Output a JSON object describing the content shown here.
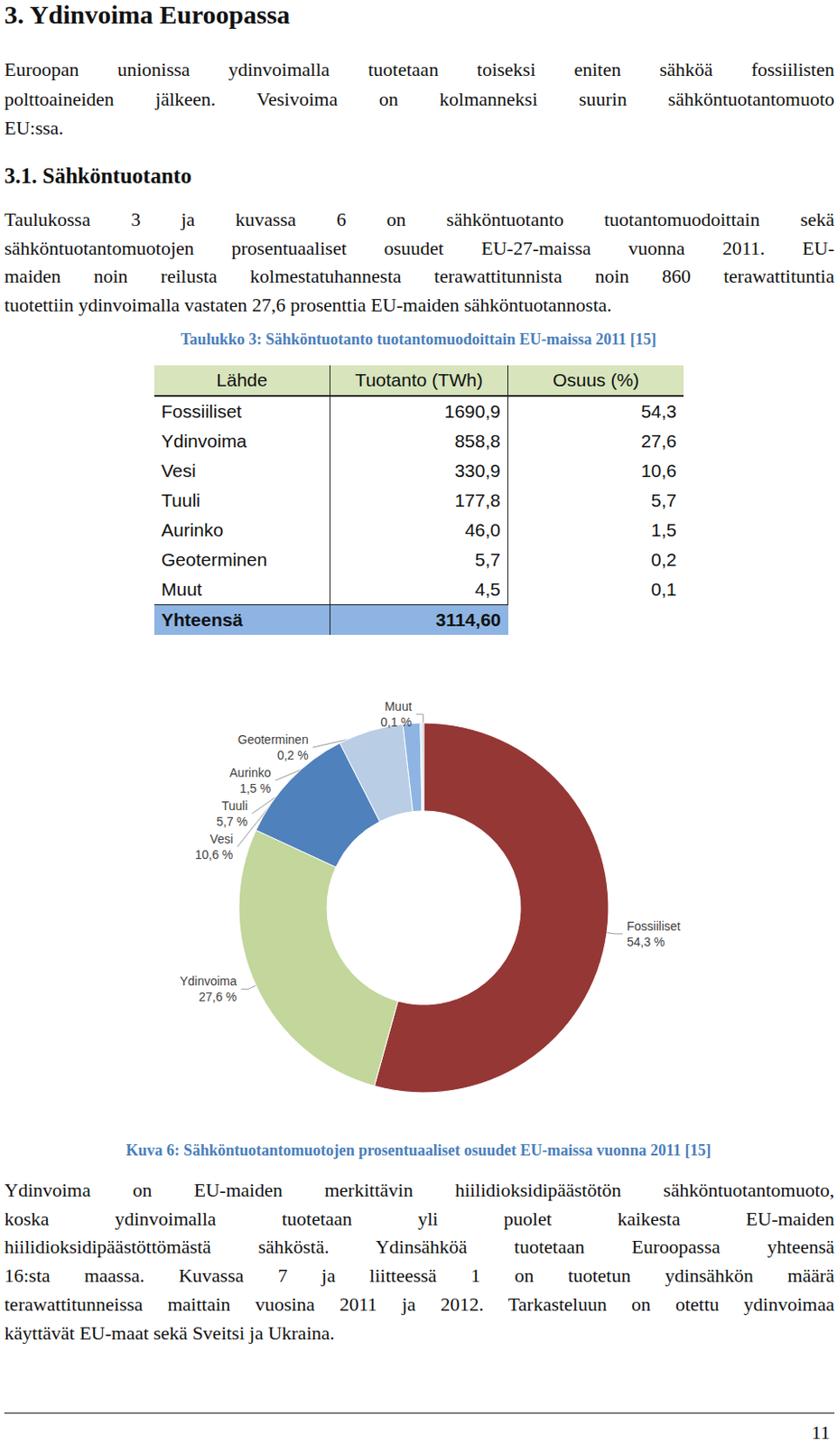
{
  "heading": "3. Ydinvoima Euroopassa",
  "intro": [
    "Euroopan unionissa ydinvoimalla tuotetaan toiseksi eniten sähköä fossiilisten",
    "polttoaineiden jälkeen. Vesivoima on kolmanneksi suurin sähköntuotantomuoto",
    "EU:ssa."
  ],
  "section": "3.1. Sähköntuotanto",
  "paragraph1": [
    "Taulukossa 3 ja kuvassa 6 on sähköntuotanto tuotantomuodoittain sekä",
    "sähköntuotantomuotojen prosentuaaliset osuudet EU-27-maissa vuonna 2011. EU-",
    "maiden noin reilusta kolmestatuhannesta terawattitunnista noin 860 terawattituntia",
    "tuotettiin ydinvoimalla vastaten 27,6 prosenttia EU-maiden sähköntuotannosta."
  ],
  "table": {
    "caption": "Taulukko 3: Sähköntuotanto tuotantomuodoittain EU-maissa 2011 [15]",
    "header": [
      "Lähde",
      "Tuotanto (TWh)",
      "Osuus (%)"
    ],
    "rows": [
      [
        "Fossiiliset",
        "1690,9",
        "54,3"
      ],
      [
        "Ydinvoima",
        "858,8",
        "27,6"
      ],
      [
        "Vesi",
        "330,9",
        "10,6"
      ],
      [
        "Tuuli",
        "177,8",
        "5,7"
      ],
      [
        "Aurinko",
        "46,0",
        "1,5"
      ],
      [
        "Geoterminen",
        "5,7",
        "0,2"
      ],
      [
        "Muut",
        "4,5",
        "0,1"
      ]
    ],
    "total": [
      "Yhteensä",
      "3114,60"
    ]
  },
  "chart_data": {
    "type": "pie",
    "categories": [
      "Fossiiliset",
      "Ydinvoima",
      "Vesi",
      "Tuuli",
      "Aurinko",
      "Geoterminen",
      "Muut"
    ],
    "values": [
      54.3,
      27.6,
      10.6,
      5.7,
      1.5,
      0.2,
      0.1
    ],
    "value_labels": [
      "54,3 %",
      "27,6 %",
      "10,6 %",
      "5,7 %",
      "1,5 %",
      "0,2 %",
      "0,1 %"
    ],
    "colors": [
      "#953735",
      "#c3d69b",
      "#4f81bd",
      "#b9cde5",
      "#8eb4e3",
      "#dbe5f1",
      "#7f7f7f"
    ],
    "data_labels": true
  },
  "figure_caption": "Kuva 6: Sähköntuotantomuotojen prosentuaaliset osuudet EU-maissa vuonna 2011 [15]",
  "paragraph2": [
    "Ydinvoima on EU-maiden merkittävin hiilidioksidipäästötön sähköntuotantomuoto,",
    "koska ydinvoimalla tuotetaan yli puolet kaikesta EU-maiden",
    "hiilidioksidipäästöttömästä sähköstä. Ydinsähköä tuotetaan Euroopassa yhteensä",
    "16:sta maassa. Kuvassa 7 ja liitteessä 1 on tuotetun ydinsähkön määrä",
    "terawattitunneissa maittain vuosina 2011 ja 2012. Tarkasteluun on otettu ydinvoimaa",
    "käyttävät EU-maat sekä Sveitsi ja Ukraina."
  ],
  "page_number": "11"
}
